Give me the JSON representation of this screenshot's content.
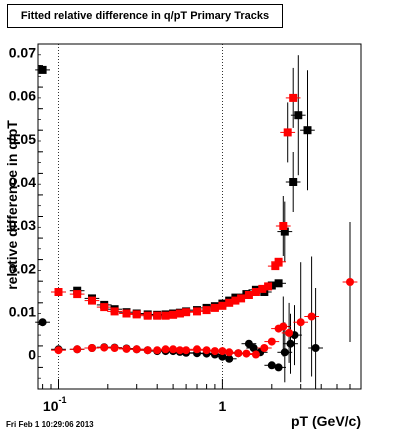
{
  "chart_data": {
    "type": "scatter",
    "title": "Fitted relative difference in q/pT  Primary Tracks",
    "xlabel": "pT (GeV/c)",
    "ylabel": "relative difference in q/pT",
    "xscale": "log",
    "xlim": [
      0.075,
      7.0
    ],
    "ylim": [
      -0.008,
      0.072
    ],
    "grid": true,
    "x_tick_labels": [
      {
        "value": 0.1,
        "base": "10",
        "exp": "-1"
      },
      {
        "value": 1,
        "base": "1",
        "exp": ""
      }
    ],
    "y_tick_labels": [
      "0",
      "0.01",
      "0.02",
      "0.03",
      "0.04",
      "0.05",
      "0.06",
      "0.07"
    ],
    "series": [
      {
        "marker": "square",
        "color": "#000000",
        "points": [
          {
            "x": 0.08,
            "y": 0.066
          },
          {
            "x": 0.1,
            "y": 0.0145
          },
          {
            "x": 0.13,
            "y": 0.0148
          },
          {
            "x": 0.16,
            "y": 0.013
          },
          {
            "x": 0.19,
            "y": 0.0115
          },
          {
            "x": 0.22,
            "y": 0.0105
          },
          {
            "x": 0.26,
            "y": 0.0098
          },
          {
            "x": 0.3,
            "y": 0.0095
          },
          {
            "x": 0.35,
            "y": 0.0093
          },
          {
            "x": 0.4,
            "y": 0.0092
          },
          {
            "x": 0.45,
            "y": 0.0093
          },
          {
            "x": 0.5,
            "y": 0.0095
          },
          {
            "x": 0.55,
            "y": 0.0097
          },
          {
            "x": 0.6,
            "y": 0.01
          },
          {
            "x": 0.7,
            "y": 0.0103
          },
          {
            "x": 0.8,
            "y": 0.0108
          },
          {
            "x": 0.9,
            "y": 0.0112
          },
          {
            "x": 1.0,
            "y": 0.0118
          },
          {
            "x": 1.1,
            "y": 0.0125
          },
          {
            "x": 1.2,
            "y": 0.0132
          },
          {
            "x": 1.4,
            "y": 0.014
          },
          {
            "x": 1.6,
            "y": 0.015
          },
          {
            "x": 1.8,
            "y": 0.0145
          },
          {
            "x": 2.0,
            "y": 0.016
          },
          {
            "x": 2.2,
            "y": 0.0165
          },
          {
            "x": 2.4,
            "y": 0.0285
          },
          {
            "x": 2.7,
            "y": 0.04
          },
          {
            "x": 2.9,
            "y": 0.0555
          },
          {
            "x": 3.3,
            "y": 0.052
          }
        ]
      },
      {
        "marker": "square",
        "color": "#ff0000",
        "points": [
          {
            "x": 0.1,
            "y": 0.0145
          },
          {
            "x": 0.13,
            "y": 0.014
          },
          {
            "x": 0.16,
            "y": 0.0125
          },
          {
            "x": 0.19,
            "y": 0.011
          },
          {
            "x": 0.22,
            "y": 0.01
          },
          {
            "x": 0.26,
            "y": 0.0095
          },
          {
            "x": 0.3,
            "y": 0.0093
          },
          {
            "x": 0.35,
            "y": 0.009
          },
          {
            "x": 0.4,
            "y": 0.009
          },
          {
            "x": 0.45,
            "y": 0.009
          },
          {
            "x": 0.5,
            "y": 0.0092
          },
          {
            "x": 0.55,
            "y": 0.0095
          },
          {
            "x": 0.6,
            "y": 0.0098
          },
          {
            "x": 0.7,
            "y": 0.01
          },
          {
            "x": 0.8,
            "y": 0.0103
          },
          {
            "x": 0.9,
            "y": 0.0108
          },
          {
            "x": 1.0,
            "y": 0.0113
          },
          {
            "x": 1.1,
            "y": 0.012
          },
          {
            "x": 1.2,
            "y": 0.0125
          },
          {
            "x": 1.3,
            "y": 0.013
          },
          {
            "x": 1.45,
            "y": 0.0138
          },
          {
            "x": 1.6,
            "y": 0.0145
          },
          {
            "x": 1.75,
            "y": 0.0152
          },
          {
            "x": 1.9,
            "y": 0.0158
          },
          {
            "x": 2.1,
            "y": 0.0205
          },
          {
            "x": 2.2,
            "y": 0.0215
          },
          {
            "x": 2.35,
            "y": 0.0298
          },
          {
            "x": 2.5,
            "y": 0.0515
          },
          {
            "x": 2.7,
            "y": 0.0595
          }
        ]
      },
      {
        "marker": "circle",
        "color": "#000000",
        "points": [
          {
            "x": 0.08,
            "y": 0.0075
          },
          {
            "x": 0.1,
            "y": 0.0012
          },
          {
            "x": 0.13,
            "y": 0.0012
          },
          {
            "x": 0.16,
            "y": 0.0015
          },
          {
            "x": 0.19,
            "y": 0.0017
          },
          {
            "x": 0.22,
            "y": 0.0016
          },
          {
            "x": 0.26,
            "y": 0.0014
          },
          {
            "x": 0.3,
            "y": 0.0012
          },
          {
            "x": 0.35,
            "y": 0.001
          },
          {
            "x": 0.4,
            "y": 0.0008
          },
          {
            "x": 0.45,
            "y": 0.0008
          },
          {
            "x": 0.5,
            "y": 0.0008
          },
          {
            "x": 0.55,
            "y": 0.0006
          },
          {
            "x": 0.6,
            "y": 0.0004
          },
          {
            "x": 0.7,
            "y": 0.0003
          },
          {
            "x": 0.8,
            "y": 0.0002
          },
          {
            "x": 0.9,
            "y": 0.0
          },
          {
            "x": 1.0,
            "y": -0.0005
          },
          {
            "x": 1.1,
            "y": -0.001
          },
          {
            "x": 1.25,
            "y": 0.0003
          },
          {
            "x": 1.45,
            "y": 0.0025
          },
          {
            "x": 1.55,
            "y": 0.0015
          },
          {
            "x": 1.7,
            "y": 0.0005
          },
          {
            "x": 2.0,
            "y": -0.0025
          },
          {
            "x": 2.2,
            "y": -0.003
          },
          {
            "x": 2.4,
            "y": 0.0005
          },
          {
            "x": 2.6,
            "y": 0.0025
          },
          {
            "x": 2.75,
            "y": 0.0045
          },
          {
            "x": 3.7,
            "y": 0.0015
          }
        ]
      },
      {
        "marker": "circle",
        "color": "#ff0000",
        "points": [
          {
            "x": 0.1,
            "y": 0.001
          },
          {
            "x": 0.13,
            "y": 0.0012
          },
          {
            "x": 0.16,
            "y": 0.0015
          },
          {
            "x": 0.19,
            "y": 0.0016
          },
          {
            "x": 0.22,
            "y": 0.0015
          },
          {
            "x": 0.26,
            "y": 0.0013
          },
          {
            "x": 0.3,
            "y": 0.0012
          },
          {
            "x": 0.35,
            "y": 0.001
          },
          {
            "x": 0.4,
            "y": 0.001
          },
          {
            "x": 0.45,
            "y": 0.0012
          },
          {
            "x": 0.5,
            "y": 0.0012
          },
          {
            "x": 0.55,
            "y": 0.001
          },
          {
            "x": 0.6,
            "y": 0.001
          },
          {
            "x": 0.7,
            "y": 0.0012
          },
          {
            "x": 0.8,
            "y": 0.001
          },
          {
            "x": 0.9,
            "y": 0.0008
          },
          {
            "x": 1.0,
            "y": 0.0008
          },
          {
            "x": 1.1,
            "y": 0.0005
          },
          {
            "x": 1.25,
            "y": 0.0003
          },
          {
            "x": 1.4,
            "y": 0.0002
          },
          {
            "x": 1.6,
            "y": 0.0
          },
          {
            "x": 1.8,
            "y": 0.0015
          },
          {
            "x": 2.0,
            "y": 0.003
          },
          {
            "x": 2.2,
            "y": 0.006
          },
          {
            "x": 2.35,
            "y": 0.0065
          },
          {
            "x": 2.55,
            "y": 0.005
          },
          {
            "x": 3.0,
            "y": 0.0075
          },
          {
            "x": 3.5,
            "y": 0.0088
          },
          {
            "x": 6.0,
            "y": 0.0168
          }
        ]
      }
    ]
  },
  "footer": {
    "timestamp": "Fri Feb  1 10:29:06 2013"
  }
}
